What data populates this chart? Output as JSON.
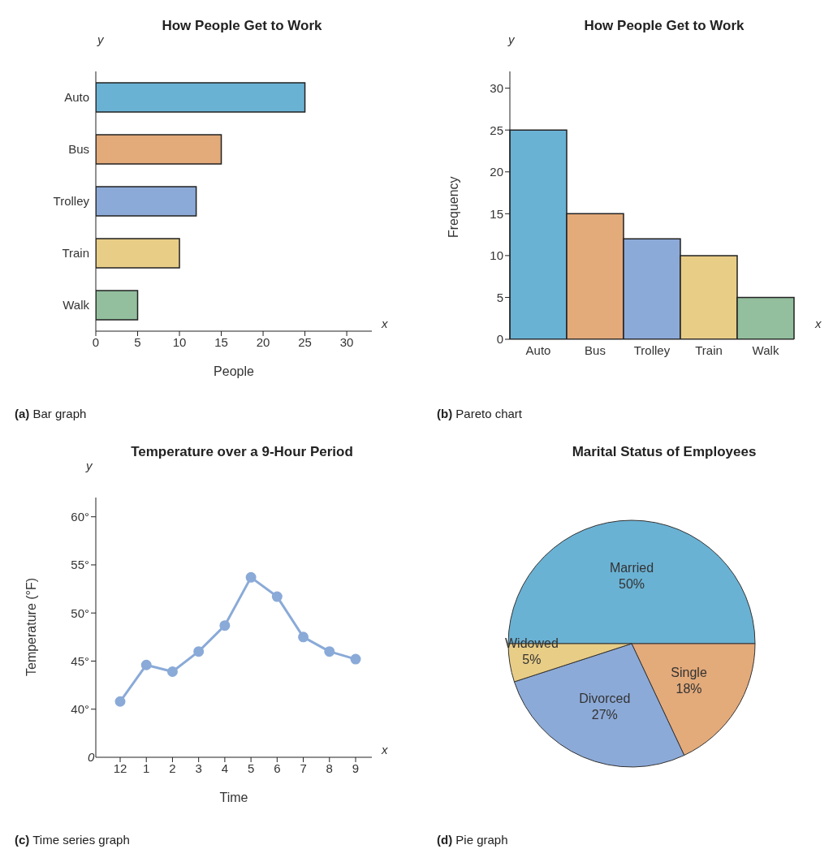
{
  "chart_data": [
    {
      "type": "bar",
      "orientation": "horizontal",
      "title": "How People Get to Work",
      "xlabel": "People",
      "categories": [
        "Auto",
        "Bus",
        "Trolley",
        "Train",
        "Walk"
      ],
      "values": [
        25,
        15,
        12,
        10,
        5
      ],
      "colors": [
        "#6ab2d4",
        "#e3aa7a",
        "#8caad8",
        "#e8cd86",
        "#93bf9e"
      ],
      "xlim": [
        0,
        33
      ],
      "xticks": [
        0,
        5,
        10,
        15,
        20,
        25,
        30
      ],
      "grid": false,
      "legend": false,
      "annotations": [
        "x",
        "y",
        "(a) Bar graph"
      ]
    },
    {
      "type": "bar",
      "title": "How People Get to Work",
      "ylabel": "Frequency",
      "categories": [
        "Auto",
        "Bus",
        "Trolley",
        "Train",
        "Walk"
      ],
      "values": [
        25,
        15,
        12,
        10,
        5
      ],
      "colors": [
        "#6ab2d4",
        "#e3aa7a",
        "#8caad8",
        "#e8cd86",
        "#93bf9e"
      ],
      "ylim": [
        0,
        32
      ],
      "yticks": [
        0,
        5,
        10,
        15,
        20,
        25,
        30
      ],
      "grid": false,
      "legend": false,
      "annotations": [
        "x",
        "y",
        "(b) Pareto chart"
      ]
    },
    {
      "type": "line",
      "title": "Temperature over a 9-Hour Period",
      "xlabel": "Time",
      "ylabel": "Temperature (°F)",
      "categories": [
        "12",
        "1",
        "2",
        "3",
        "4",
        "5",
        "6",
        "7",
        "8",
        "9"
      ],
      "series": [
        {
          "color": "#8aaad8",
          "values": [
            40.8,
            44.6,
            43.9,
            46.0,
            48.7,
            53.7,
            51.7,
            47.5,
            46.0,
            45.2
          ]
        }
      ],
      "ylim": [
        35,
        62
      ],
      "yticks": [
        {
          "value": 40,
          "label": "40°"
        },
        {
          "value": 45,
          "label": "45°"
        },
        {
          "value": 50,
          "label": "50°"
        },
        {
          "value": 55,
          "label": "55°"
        },
        {
          "value": 60,
          "label": "60°"
        }
      ],
      "marker": "circle",
      "line_style": "solid",
      "grid": false,
      "legend": false,
      "annotations": [
        "x",
        "y",
        "0",
        "(c) Time series graph"
      ]
    },
    {
      "type": "pie",
      "title": "Marital Status of Employees",
      "categories": [
        "Married",
        "Single",
        "Divorced",
        "Widowed"
      ],
      "values": [
        50,
        18,
        27,
        5
      ],
      "value_labels": [
        "50%",
        "18%",
        "27%",
        "5%"
      ],
      "colors": [
        "#6ab2d4",
        "#e3aa7a",
        "#8caad8",
        "#e8cd86"
      ],
      "legend": false,
      "annotations": [
        "(d) Pie graph"
      ]
    }
  ]
}
